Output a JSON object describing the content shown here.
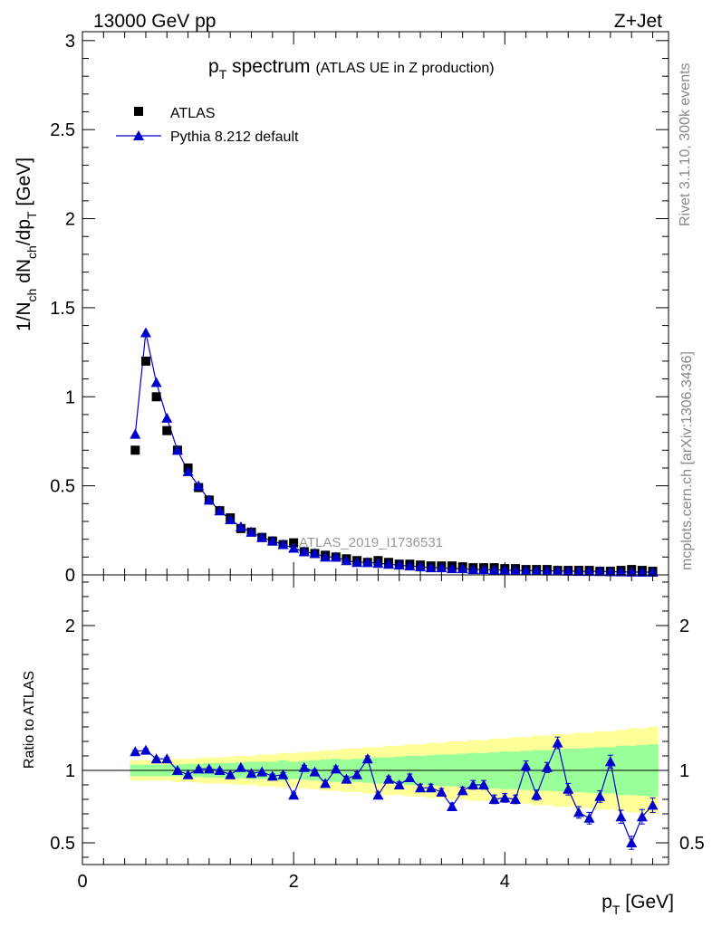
{
  "header": {
    "left": "13000 GeV pp",
    "right": "Z+Jet"
  },
  "side_labels": {
    "rivet": "Rivet 3.1.10,  300k events",
    "mcplots": "mcplots.cern.ch [arXiv:1306.3436]"
  },
  "chart_data": [
    {
      "type": "scatter",
      "panel": "main",
      "title_main": "p",
      "title_sub": "T",
      "title_rest": " spectrum",
      "title_paren": "(ATLAS UE in Z production)",
      "analysis_tag": "ATLAS_2019_I1736531",
      "ylabel": "1/N_ch dN_ch/dp_T [GeV]",
      "ylabel_parts": {
        "a": "1/N",
        "a_sub": "ch",
        "b": " dN",
        "b_sub": "ch",
        "c": "/dp",
        "c_sub": "T",
        "d": " [GeV]"
      },
      "xlim": [
        0,
        5.55
      ],
      "ylim": [
        0,
        3.05
      ],
      "yticks": [
        0,
        0.5,
        1,
        1.5,
        2,
        2.5,
        3
      ],
      "ytick_labels": [
        "0",
        "0.5",
        "1",
        "1.5",
        "2",
        "2.5",
        "3"
      ],
      "legend": [
        {
          "name": "ATLAS",
          "marker": "square",
          "color": "#000000"
        },
        {
          "name": "Pythia 8.212 default",
          "marker": "triangle",
          "color": "#0000cc"
        }
      ],
      "x": [
        0.5,
        0.6,
        0.7,
        0.8,
        0.9,
        1.0,
        1.1,
        1.2,
        1.3,
        1.4,
        1.5,
        1.6,
        1.7,
        1.8,
        1.9,
        2.0,
        2.1,
        2.2,
        2.3,
        2.4,
        2.5,
        2.6,
        2.7,
        2.8,
        2.9,
        3.0,
        3.1,
        3.2,
        3.3,
        3.4,
        3.5,
        3.6,
        3.7,
        3.8,
        3.9,
        4.0,
        4.1,
        4.2,
        4.3,
        4.4,
        4.5,
        4.6,
        4.7,
        4.8,
        4.9,
        5.0,
        5.1,
        5.2,
        5.3,
        5.4
      ],
      "series": [
        {
          "name": "ATLAS",
          "values": [
            0.7,
            1.2,
            1.0,
            0.81,
            0.7,
            0.6,
            0.49,
            0.42,
            0.36,
            0.32,
            0.26,
            0.24,
            0.21,
            0.19,
            0.17,
            0.18,
            0.13,
            0.12,
            0.11,
            0.1,
            0.09,
            0.08,
            0.07,
            0.08,
            0.07,
            0.06,
            0.06,
            0.055,
            0.05,
            0.05,
            0.05,
            0.045,
            0.04,
            0.04,
            0.04,
            0.035,
            0.035,
            0.03,
            0.03,
            0.03,
            0.025,
            0.025,
            0.025,
            0.025,
            0.02,
            0.02,
            0.025,
            0.03,
            0.025,
            0.02
          ]
        },
        {
          "name": "Pythia 8.212 default",
          "values": [
            0.79,
            1.36,
            1.08,
            0.88,
            0.7,
            0.58,
            0.5,
            0.42,
            0.36,
            0.31,
            0.27,
            0.24,
            0.21,
            0.19,
            0.17,
            0.15,
            0.13,
            0.12,
            0.1,
            0.1,
            0.08,
            0.07,
            0.07,
            0.065,
            0.06,
            0.055,
            0.05,
            0.045,
            0.04,
            0.04,
            0.035,
            0.035,
            0.03,
            0.03,
            0.028,
            0.026,
            0.025,
            0.024,
            0.023,
            0.022,
            0.022,
            0.021,
            0.02,
            0.02,
            0.019,
            0.018,
            0.017,
            0.016,
            0.015,
            0.015
          ]
        }
      ]
    },
    {
      "type": "line",
      "panel": "ratio",
      "ylabel": "Ratio to ATLAS",
      "xlabel_main": "p",
      "xlabel_sub": "T",
      "xlabel_rest": " [GeV]",
      "xlim": [
        0,
        5.55
      ],
      "ylim": [
        0.35,
        2.35
      ],
      "yticks": [
        0.5,
        1,
        2
      ],
      "ytick_labels": [
        "0.5",
        "1",
        "2"
      ],
      "xticks": [
        0,
        2,
        4
      ],
      "xtick_labels": [
        "0",
        "2",
        "4"
      ],
      "reference_line": 1,
      "x": [
        0.5,
        0.6,
        0.7,
        0.8,
        0.9,
        1.0,
        1.1,
        1.2,
        1.3,
        1.4,
        1.5,
        1.6,
        1.7,
        1.8,
        1.9,
        2.0,
        2.1,
        2.2,
        2.3,
        2.4,
        2.5,
        2.6,
        2.7,
        2.8,
        2.9,
        3.0,
        3.1,
        3.2,
        3.3,
        3.4,
        3.5,
        3.6,
        3.7,
        3.8,
        3.9,
        4.0,
        4.1,
        4.2,
        4.3,
        4.4,
        4.5,
        4.6,
        4.7,
        4.8,
        4.9,
        5.0,
        5.1,
        5.2,
        5.3,
        5.4
      ],
      "ratio": [
        1.13,
        1.14,
        1.08,
        1.08,
        1.0,
        0.97,
        1.01,
        1.01,
        1.0,
        0.97,
        1.02,
        0.98,
        0.99,
        0.96,
        0.97,
        0.83,
        1.02,
        0.99,
        0.91,
        1.01,
        0.94,
        0.97,
        1.08,
        0.83,
        0.94,
        0.9,
        0.95,
        0.88,
        0.88,
        0.85,
        0.75,
        0.86,
        0.9,
        0.9,
        0.8,
        0.81,
        0.8,
        1.03,
        0.83,
        1.02,
        1.19,
        0.87,
        0.71,
        0.67,
        0.82,
        1.06,
        0.68,
        0.5,
        0.68,
        0.76
      ],
      "ratio_err": [
        0.01,
        0.01,
        0.01,
        0.01,
        0.01,
        0.01,
        0.01,
        0.01,
        0.01,
        0.01,
        0.01,
        0.01,
        0.01,
        0.015,
        0.015,
        0.015,
        0.015,
        0.015,
        0.02,
        0.02,
        0.02,
        0.02,
        0.02,
        0.02,
        0.02,
        0.02,
        0.025,
        0.025,
        0.025,
        0.025,
        0.025,
        0.025,
        0.03,
        0.03,
        0.03,
        0.03,
        0.03,
        0.035,
        0.035,
        0.035,
        0.04,
        0.04,
        0.04,
        0.04,
        0.04,
        0.045,
        0.045,
        0.045,
        0.05,
        0.05
      ],
      "band_inner_halfwidth": [
        0.04,
        0.04,
        0.04,
        0.04,
        0.04,
        0.045,
        0.045,
        0.05,
        0.05,
        0.05,
        0.055,
        0.06,
        0.06,
        0.06,
        0.07,
        0.06,
        0.065,
        0.07,
        0.075,
        0.08,
        0.075,
        0.08,
        0.085,
        0.09,
        0.09,
        0.095,
        0.1,
        0.1,
        0.105,
        0.11,
        0.11,
        0.115,
        0.12,
        0.12,
        0.125,
        0.13,
        0.13,
        0.135,
        0.14,
        0.14,
        0.145,
        0.15,
        0.15,
        0.155,
        0.16,
        0.16,
        0.17,
        0.17,
        0.175,
        0.18
      ],
      "band_outer_halfwidth": [
        0.07,
        0.07,
        0.07,
        0.07,
        0.08,
        0.08,
        0.085,
        0.09,
        0.09,
        0.095,
        0.1,
        0.1,
        0.11,
        0.11,
        0.12,
        0.12,
        0.125,
        0.13,
        0.14,
        0.14,
        0.15,
        0.15,
        0.16,
        0.16,
        0.17,
        0.17,
        0.18,
        0.18,
        0.19,
        0.19,
        0.2,
        0.2,
        0.21,
        0.21,
        0.22,
        0.22,
        0.23,
        0.23,
        0.24,
        0.24,
        0.25,
        0.25,
        0.26,
        0.26,
        0.27,
        0.27,
        0.28,
        0.29,
        0.29,
        0.3
      ],
      "band_colors": {
        "inner": "#99ff99",
        "outer": "#ffff99"
      }
    }
  ]
}
